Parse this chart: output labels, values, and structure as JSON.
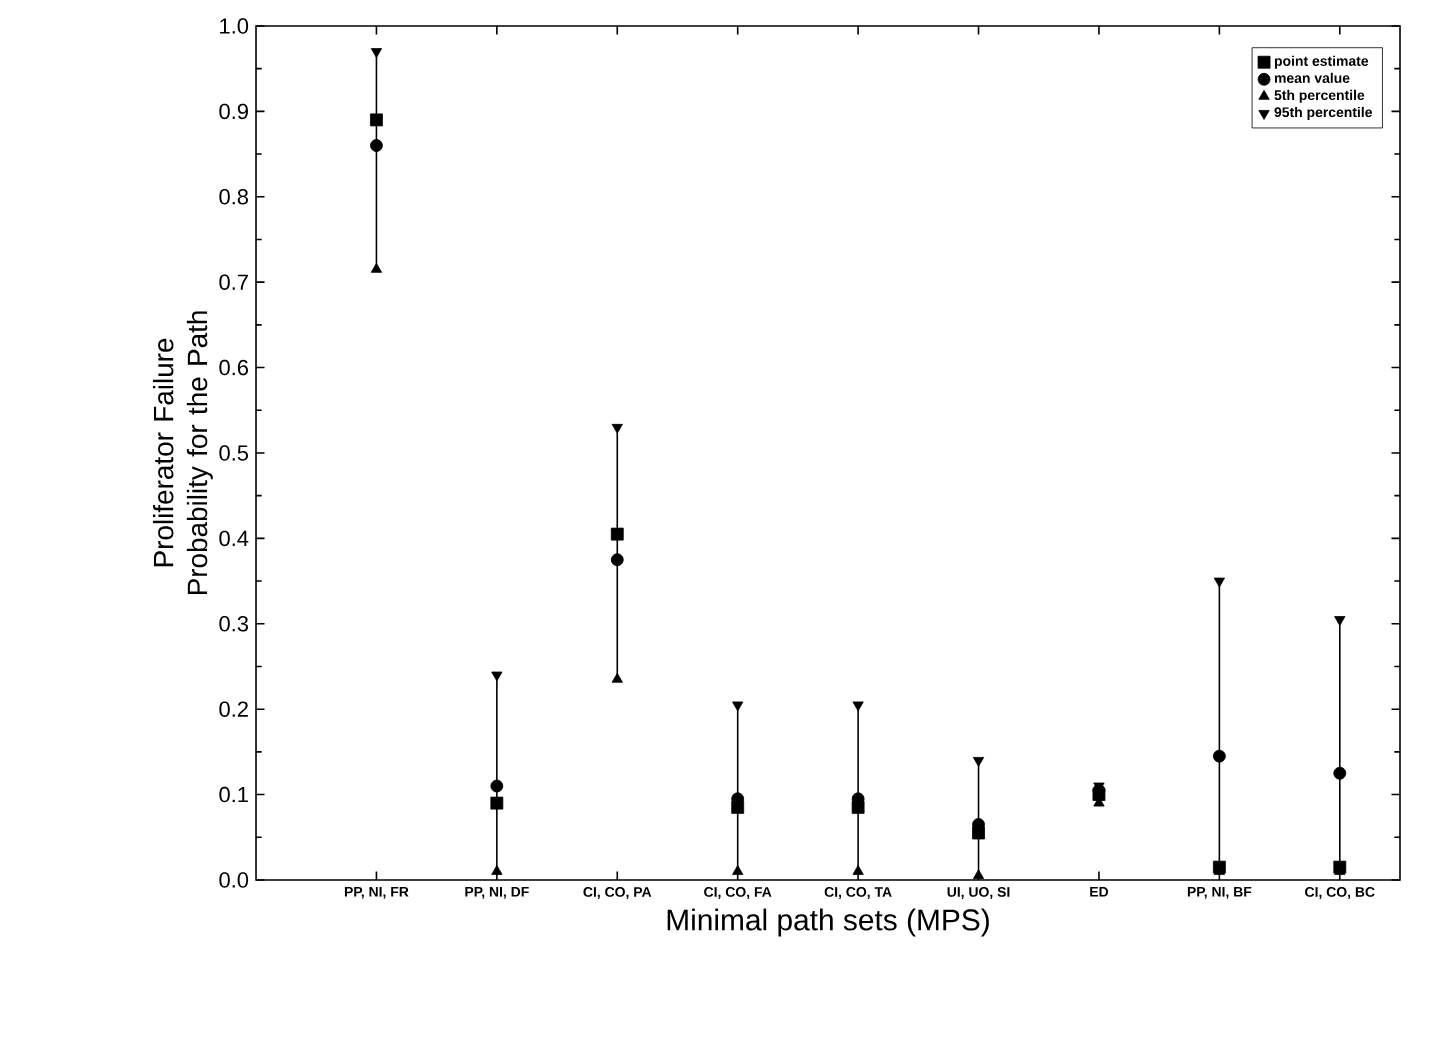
{
  "chart_data": {
    "type": "scatter",
    "xlabel": "Minimal path sets (MPS)",
    "ylabel": "Proliferator Failure Probability for the Path",
    "categories": [
      "PP, NI, FR",
      "PP, NI, DF",
      "CI, CO, PA",
      "CI, CO, FA",
      "CI, CO, TA",
      "UI, UO, SI",
      "ED",
      "PP, NI, BF",
      "CI, CO, BC"
    ],
    "series": [
      {
        "name": "point estimate",
        "color": "#000000",
        "marker": "square",
        "values": [
          0.89,
          0.09,
          0.405,
          0.085,
          0.085,
          0.055,
          0.1,
          0.015,
          0.015
        ]
      },
      {
        "name": "mean value",
        "color": "#000000",
        "marker": "circle",
        "values": [
          0.86,
          0.11,
          0.375,
          0.095,
          0.095,
          0.065,
          0.105,
          0.145,
          0.125
        ]
      },
      {
        "name": "5th percentile",
        "color": "#000000",
        "marker": "triangle",
        "values": [
          0.715,
          0.01,
          0.235,
          0.01,
          0.01,
          0.005,
          0.09,
          0.01,
          0.01
        ]
      },
      {
        "name": "95th percentile",
        "color": "#000000",
        "marker": "triangle-down",
        "values": [
          0.97,
          0.24,
          0.53,
          0.205,
          0.205,
          0.14,
          0.11,
          0.35,
          0.305
        ]
      }
    ],
    "ylim": [
      0,
      1
    ],
    "yticks": [
      {
        "value": 0,
        "label": "0.0"
      },
      0.1,
      0.2,
      0.3,
      0.4,
      0.5,
      0.6,
      0.7,
      0.8,
      0.9,
      {
        "value": 1,
        "label": "1.0"
      }
    ],
    "legend": "top right",
    "grid": false
  }
}
